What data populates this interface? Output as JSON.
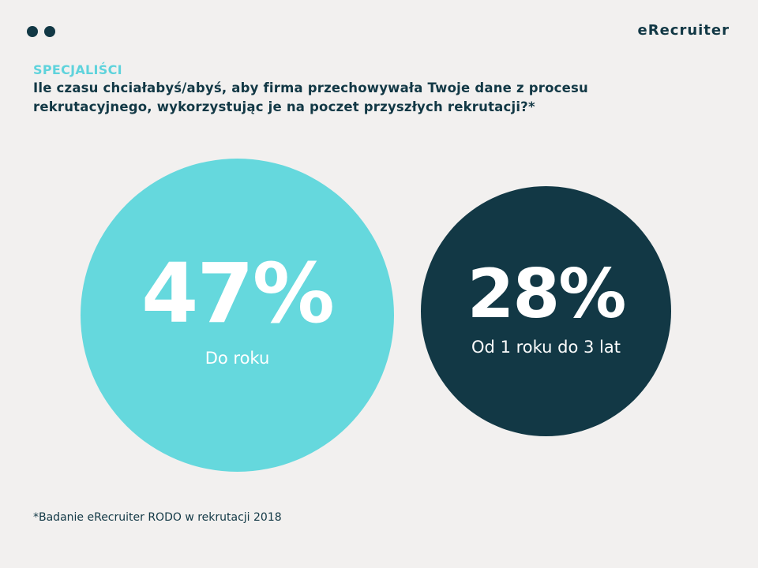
{
  "brand": {
    "logo_text": "eRecruiter",
    "dots_count": 2,
    "colors": {
      "background": "#f2f0ef",
      "dark": "#123845",
      "teal": "#65d8dd",
      "text_on_circle": "#ffffff"
    }
  },
  "header": {
    "kicker": "SPECJALIŚCI",
    "question": "Ile czasu chciałabyś/abyś, aby firma przechowywała Twoje dane z procesu rekrutacyjnego, wykorzystując je na poczet przyszłych rekrutacji?*"
  },
  "stats": [
    {
      "value": "47%",
      "label": "Do roku",
      "color": "#65d8dd"
    },
    {
      "value": "28%",
      "label": "Od 1 roku do 3 lat",
      "color": "#123845"
    }
  ],
  "footnote": "*Badanie eRecruiter RODO w rekrutacji 2018",
  "chart_data": {
    "type": "bubble",
    "title": "Ile czasu chciałabyś/abyś, aby firma przechowywała Twoje dane z procesu rekrutacyjnego, wykorzystując je na poczet przyszłych rekrutacji?*",
    "subtitle": "SPECJALIŚCI",
    "categories": [
      "Do roku",
      "Od 1 roku do 3 lat"
    ],
    "values": [
      47,
      28
    ],
    "unit": "%",
    "colors": [
      "#65d8dd",
      "#123845"
    ],
    "source": "*Badanie eRecruiter RODO w rekrutacji 2018",
    "legend": "none"
  }
}
